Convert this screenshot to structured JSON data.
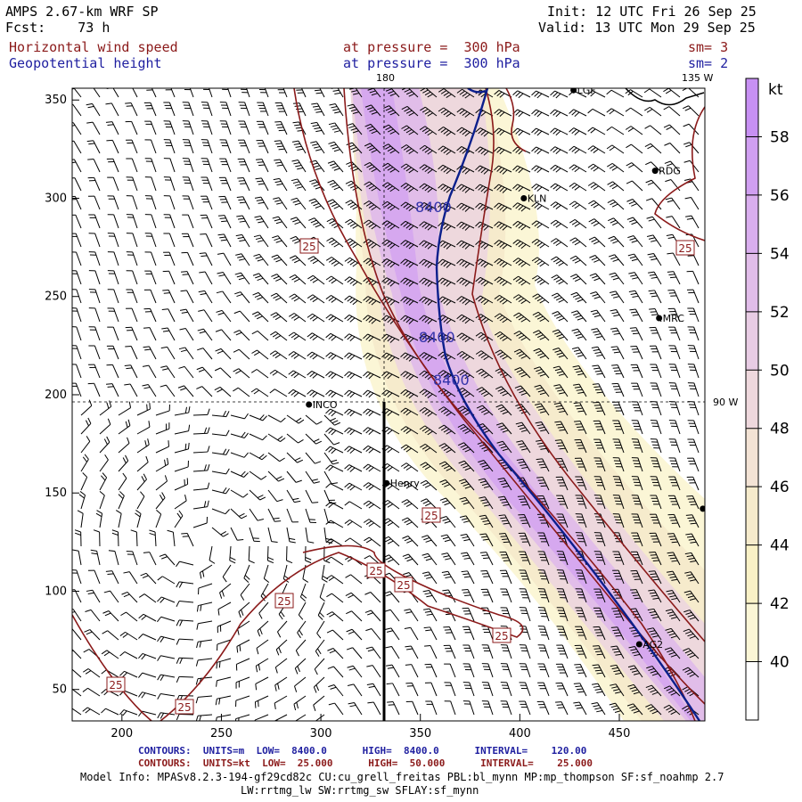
{
  "header": {
    "model": "AMPS 2.67-km WRF SP",
    "init": "Init: 12 UTC Fri 26 Sep 25",
    "fcst": "Fcst:    73 h",
    "valid": "Valid: 13 UTC Mon 29 Sep 25",
    "field1": "Horizontal wind speed",
    "field1_level": "at pressure =  300 hPa",
    "field1_sm": "sm= 3",
    "field2": "Geopotential height",
    "field2_level": "at pressure =  300 hPa",
    "field2_sm": "sm= 2"
  },
  "footer": {
    "contours_height": "CONTOURS:  UNITS=m  LOW=  8400.0      HIGH=  8400.0      INTERVAL=    120.00",
    "contours_wind": "CONTOURS:  UNITS=kt  LOW=  25.000      HIGH=  50.000      INTERVAL=    25.000",
    "model_info_1": "Model Info: MPASv8.2.3-194-gf29cd82c CU:cu_grell_freitas PBL:bl_mynn MP:mp_thompson SF:sf_noahmp 2.7",
    "model_info_2": "LW:rrtmg_lw SW:rrtmg_sw SFLAY:sf_mynn"
  },
  "chart_data": {
    "type": "contour-map",
    "title": "Horizontal wind speed / Geopotential height at 300 hPa",
    "x_ticks": [
      "200",
      "250",
      "300",
      "350",
      "400",
      "450"
    ],
    "x_tick_values": [
      200,
      250,
      300,
      350,
      400,
      450
    ],
    "y_ticks": [
      "50",
      "100",
      "150",
      "200",
      "250",
      "300",
      "350"
    ],
    "y_tick_values": [
      50,
      100,
      150,
      200,
      250,
      300,
      350
    ],
    "xlim": [
      175,
      493
    ],
    "ylim": [
      34,
      356
    ],
    "meridian_labels": {
      "top": "180",
      "top_right": "135 W",
      "right": "90 W"
    },
    "colorbar": {
      "unit": "kt",
      "levels": [
        "40",
        "42",
        "44",
        "46",
        "48",
        "50",
        "52",
        "54",
        "56",
        "58"
      ],
      "colors": [
        "#ffffff",
        "#fbf6d6",
        "#f9f1c6",
        "#f6ebcc",
        "#f3e3d5",
        "#eed8dd",
        "#e8cce4",
        "#e1bde9",
        "#d9aeee",
        "#d09ff1",
        "#c790f3"
      ]
    },
    "height_contour": {
      "value": "8400",
      "color": "#0b1f8c"
    },
    "wind_contour_labels": [
      "25",
      "25",
      "25",
      "25",
      "25",
      "25",
      "25",
      "25",
      "25"
    ],
    "stations": [
      {
        "name": "LGF",
        "x": 427,
        "y": 355
      },
      {
        "name": "RDG",
        "x": 468,
        "y": 314
      },
      {
        "name": "KLN",
        "x": 402,
        "y": 300
      },
      {
        "name": "MRC",
        "x": 470,
        "y": 239
      },
      {
        "name": "INCO",
        "x": 294,
        "y": 195
      },
      {
        "name": "Henry",
        "x": 333,
        "y": 155
      },
      {
        "name": "AG2",
        "x": 460,
        "y": 73
      },
      {
        "name": "",
        "x": 492,
        "y": 142
      }
    ]
  }
}
